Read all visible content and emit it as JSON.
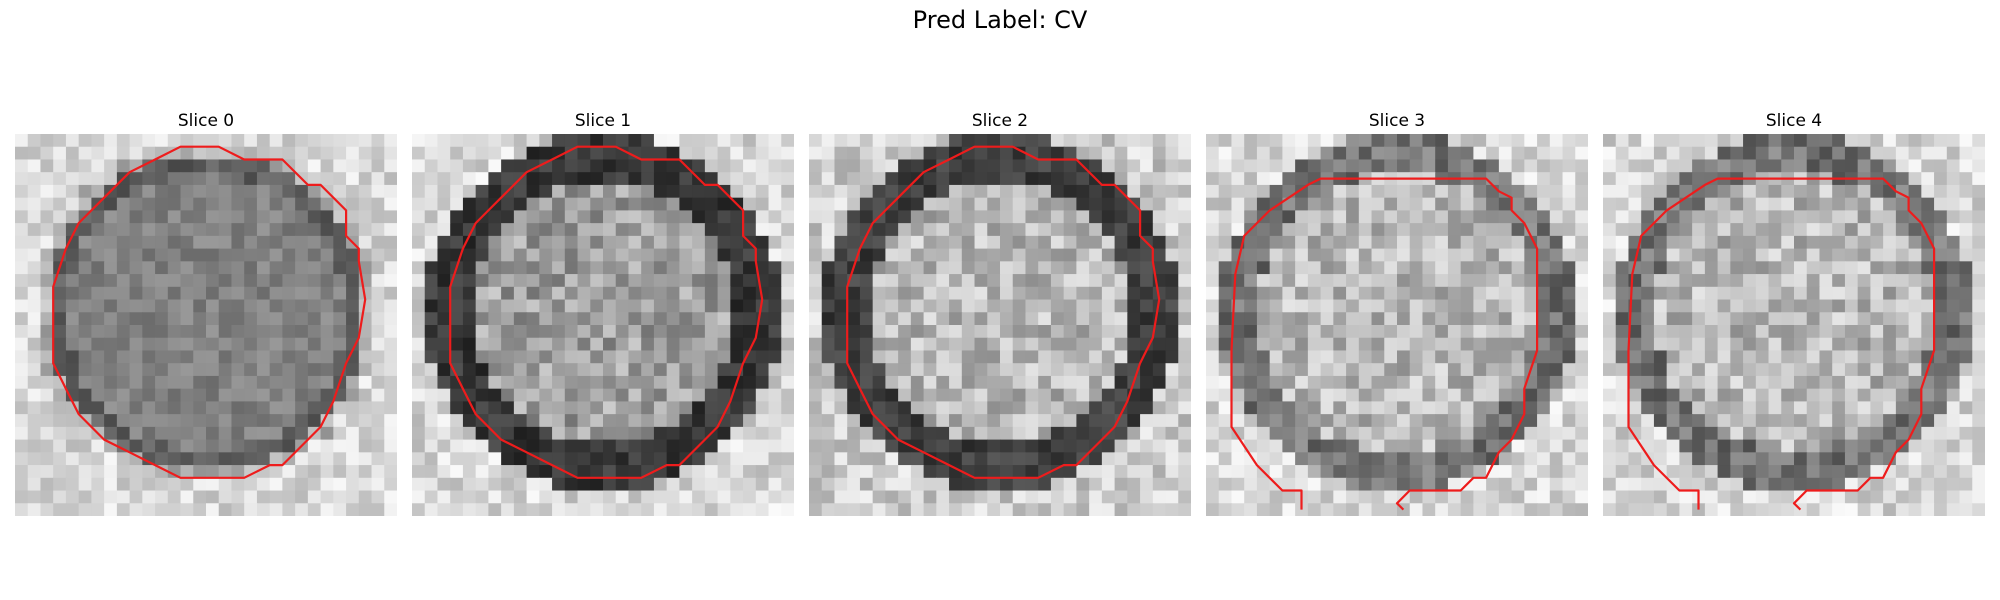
{
  "suptitle": "Pred Label: CV",
  "contour_color": "#ee1c1c",
  "panels": [
    {
      "title": "Slice 0",
      "seed": 11,
      "style": "dark_blob",
      "contour": "closed"
    },
    {
      "title": "Slice 1",
      "seed": 23,
      "style": "ring",
      "contour": "closed"
    },
    {
      "title": "Slice 2",
      "seed": 37,
      "style": "ring_light",
      "contour": "closed"
    },
    {
      "title": "Slice 3",
      "seed": 51,
      "style": "light_center",
      "contour": "open"
    },
    {
      "title": "Slice 4",
      "seed": 53,
      "style": "light_center",
      "contour": "open"
    }
  ]
}
